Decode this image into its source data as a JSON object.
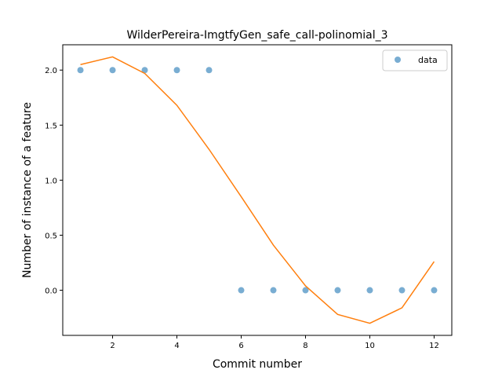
{
  "chart_data": {
    "type": "scatter",
    "title": "WilderPereira-ImgtfyGen_safe_call-polinomial_3",
    "xlabel": "Commit number",
    "ylabel": "Number of instance of a feature",
    "xlim": [
      0.45,
      12.55
    ],
    "ylim": [
      -0.41,
      2.23
    ],
    "xticks": [
      2,
      4,
      6,
      8,
      10,
      12
    ],
    "yticks": [
      0.0,
      0.5,
      1.0,
      1.5,
      2.0
    ],
    "xtick_labels": [
      "2",
      "4",
      "6",
      "8",
      "10",
      "12"
    ],
    "ytick_labels": [
      "0.0",
      "0.5",
      "1.0",
      "1.5",
      "2.0"
    ],
    "grid": false,
    "legend_position": "top-right",
    "series": [
      {
        "name": "data",
        "kind": "scatter",
        "color": "#1f77b4",
        "x": [
          1,
          2,
          3,
          4,
          5,
          6,
          7,
          8,
          9,
          10,
          11,
          12
        ],
        "y": [
          2,
          2,
          2,
          2,
          2,
          0,
          0,
          0,
          0,
          0,
          0,
          0
        ]
      },
      {
        "kind": "line",
        "color": "#ff7f0e",
        "x": [
          1,
          2,
          3,
          4,
          5,
          6,
          7,
          8,
          9,
          10,
          11,
          12
        ],
        "y": [
          2.05,
          2.12,
          1.97,
          1.68,
          1.28,
          0.85,
          0.41,
          0.04,
          -0.22,
          -0.3,
          -0.16,
          0.26
        ]
      }
    ]
  }
}
